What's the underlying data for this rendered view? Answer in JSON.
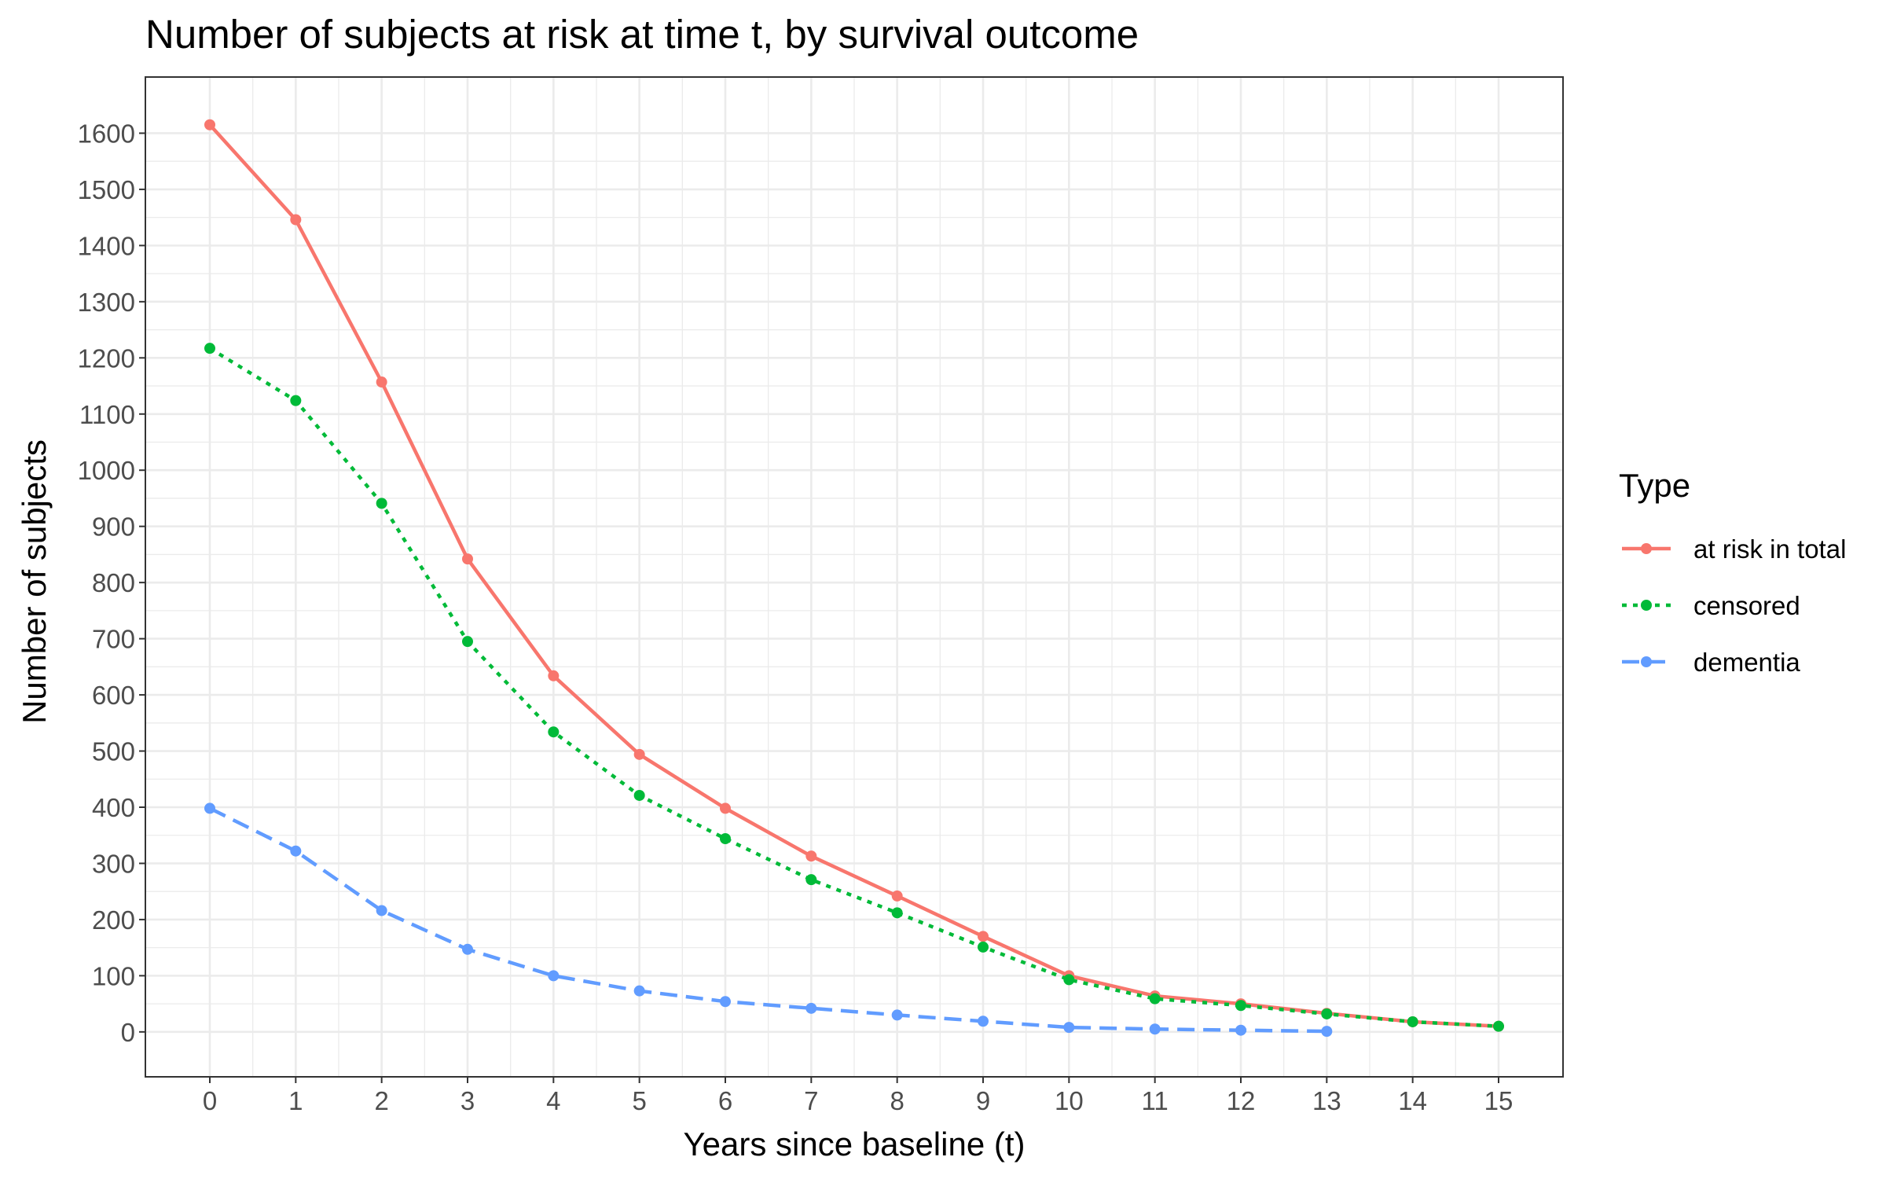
{
  "chart_data": {
    "type": "line",
    "title": "Number of subjects at risk at time t, by survival outcome",
    "xlabel": "Years since baseline (t)",
    "ylabel": "Number of subjects",
    "xlim": [
      -0.75,
      15.75
    ],
    "ylim": [
      -80,
      1700
    ],
    "x_ticks": [
      0,
      1,
      2,
      3,
      4,
      5,
      6,
      7,
      8,
      9,
      10,
      11,
      12,
      13,
      14,
      15
    ],
    "y_ticks": [
      0,
      100,
      200,
      300,
      400,
      500,
      600,
      700,
      800,
      900,
      1000,
      1100,
      1200,
      1300,
      1400,
      1500,
      1600
    ],
    "grid": true,
    "legend": {
      "title": "Type",
      "position": "right"
    },
    "series": [
      {
        "name": "at risk in total",
        "color": "#F8766D",
        "line_style": "solid",
        "x": [
          0,
          1,
          2,
          3,
          4,
          5,
          6,
          7,
          8,
          9,
          10,
          11,
          12,
          13,
          14,
          15
        ],
        "values": [
          1615,
          1446,
          1157,
          842,
          634,
          494,
          398,
          313,
          242,
          170,
          100,
          64,
          50,
          33,
          18,
          10
        ]
      },
      {
        "name": "censored",
        "color": "#00BA38",
        "line_style": "dotted",
        "x": [
          0,
          1,
          2,
          3,
          4,
          5,
          6,
          7,
          8,
          9,
          10,
          11,
          12,
          13,
          14,
          15
        ],
        "values": [
          1217,
          1124,
          941,
          695,
          534,
          421,
          344,
          271,
          212,
          151,
          93,
          59,
          47,
          32,
          18,
          10
        ]
      },
      {
        "name": "dementia",
        "color": "#619CFF",
        "line_style": "dashed",
        "x": [
          0,
          1,
          2,
          3,
          4,
          5,
          6,
          7,
          8,
          9,
          10,
          11,
          12,
          13
        ],
        "values": [
          398,
          322,
          216,
          147,
          100,
          73,
          54,
          42,
          30,
          19,
          8,
          5,
          3,
          1
        ]
      }
    ]
  }
}
